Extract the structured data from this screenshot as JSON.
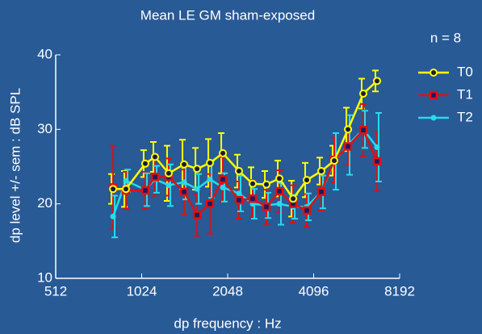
{
  "chart_data": {
    "type": "line",
    "title": "Mean LE GM sham-exposed",
    "annotation": "n = 8",
    "x_label": "dp frequency : Hz",
    "y_label": "dp level +/- sem : dB SPL",
    "x": [
      813,
      902,
      1054,
      1140,
      1273,
      1441,
      1600,
      1775,
      1970,
      2243,
      2506,
      2799,
      3106,
      3471,
      3875,
      4357,
      4835,
      5402,
      6111,
      6826
    ],
    "xlim": [
      512,
      8192
    ],
    "xticks": [
      512,
      1024,
      2048,
      4096,
      8192
    ],
    "x_log2": true,
    "ylim": [
      10,
      40
    ],
    "yticks": [
      10,
      20,
      30,
      40
    ],
    "legend": "upper right",
    "series": [
      {
        "name": "T0",
        "color": "#ffff00",
        "marker": "circle",
        "values": [
          22.0,
          22.0,
          25.4,
          26.3,
          24.1,
          25.3,
          24.7,
          25.5,
          26.8,
          24.4,
          22.7,
          22.6,
          23.4,
          20.7,
          23.2,
          24.4,
          25.8,
          30.0,
          34.8,
          36.5
        ],
        "errors": [
          2.0,
          2.4,
          1.8,
          2.0,
          3.7,
          3.3,
          2.8,
          3.2,
          2.7,
          2.2,
          2.2,
          1.8,
          2.4,
          2.4,
          2.3,
          1.8,
          2.0,
          2.9,
          2.0,
          1.4
        ]
      },
      {
        "name": "T1",
        "color": "#dd1111",
        "marker": "square",
        "values": [
          22.2,
          21.8,
          21.8,
          23.6,
          23.6,
          21.6,
          18.5,
          20.0,
          23.3,
          20.5,
          20.7,
          19.6,
          21.7,
          20.0,
          19.1,
          21.6,
          25.9,
          27.7,
          29.9,
          25.7
        ],
        "errors": [
          5.6,
          2.5,
          2.5,
          2.5,
          2.5,
          3.0,
          2.8,
          4.0,
          3.0,
          2.5,
          2.5,
          2.3,
          2.8,
          2.5,
          2.2,
          2.5,
          3.0,
          2.5,
          3.5,
          4.0
        ]
      },
      {
        "name": "T2",
        "color": "#22ddee",
        "marker": "dot",
        "values": [
          18.3,
          23.1,
          21.9,
          23.3,
          22.5,
          22.9,
          22.0,
          23.3,
          22.2,
          21.4,
          20.0,
          19.8,
          20.0,
          19.6,
          19.6,
          21.6,
          25.7,
          27.9,
          30.0,
          27.6
        ],
        "errors": [
          2.8,
          1.5,
          2.2,
          1.8,
          2.8,
          2.3,
          2.0,
          2.5,
          1.9,
          2.4,
          2.0,
          1.7,
          2.8,
          1.6,
          1.8,
          2.2,
          3.8,
          4.0,
          2.5,
          4.6
        ]
      }
    ]
  }
}
